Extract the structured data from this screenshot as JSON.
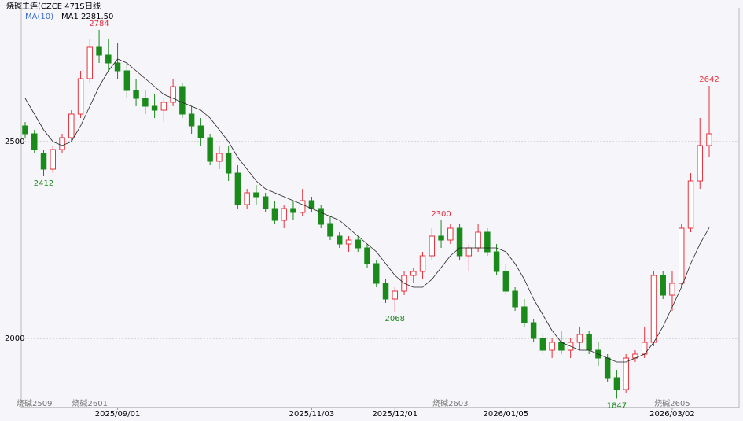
{
  "header": {
    "title": "烧碱主连(CZCE 471S)",
    "period": "日线",
    "ma_selector": "MA(10)",
    "ma_readout": "MA1 2281.50"
  },
  "chart_data": {
    "type": "candlestick",
    "ylim": [
      1824,
      2840
    ],
    "yticks": [
      2000,
      2500
    ],
    "grid": true,
    "up_color": "#e8303c",
    "down_color": "#1a8a1a",
    "ma_color": "#222222",
    "categories": [
      null,
      null,
      null,
      null,
      null,
      null,
      null,
      null,
      null,
      null,
      "2025/09/01",
      null,
      null,
      null,
      null,
      null,
      null,
      null,
      null,
      null,
      null,
      null,
      null,
      null,
      null,
      null,
      null,
      null,
      null,
      null,
      null,
      "2025/11/03",
      null,
      null,
      null,
      null,
      null,
      null,
      null,
      null,
      "2025/12/01",
      null,
      null,
      null,
      null,
      null,
      null,
      null,
      null,
      null,
      null,
      null,
      "2026/01/05",
      null,
      null,
      null,
      null,
      null,
      null,
      null,
      null,
      null,
      null,
      null,
      null,
      null,
      null,
      null,
      null,
      null,
      "2026/03/02",
      null,
      null,
      null,
      null
    ],
    "contracts": [
      null,
      "烧碱2509",
      null,
      null,
      null,
      null,
      null,
      "烧碱2601",
      null,
      null,
      null,
      null,
      null,
      null,
      null,
      null,
      null,
      null,
      null,
      null,
      null,
      null,
      null,
      null,
      null,
      null,
      null,
      null,
      null,
      null,
      null,
      null,
      null,
      null,
      null,
      null,
      null,
      null,
      null,
      null,
      null,
      null,
      null,
      null,
      null,
      null,
      "烧碱2603",
      null,
      null,
      null,
      null,
      null,
      null,
      null,
      null,
      null,
      null,
      null,
      null,
      null,
      null,
      null,
      null,
      null,
      null,
      null,
      null,
      null,
      null,
      null,
      "烧碱2605",
      null,
      null,
      null,
      null
    ],
    "open": [
      2540,
      2520,
      2470,
      2430,
      2480,
      2510,
      2570,
      2660,
      2740,
      2720,
      2700,
      2680,
      2630,
      2610,
      2590,
      2580,
      2600,
      2640,
      2570,
      2540,
      2510,
      2450,
      2470,
      2420,
      2340,
      2370,
      2360,
      2330,
      2300,
      2330,
      2320,
      2350,
      2330,
      2290,
      2260,
      2240,
      2250,
      2230,
      2190,
      2140,
      2100,
      2120,
      2160,
      2170,
      2210,
      2260,
      2250,
      2280,
      2210,
      2230,
      2270,
      2220,
      2170,
      2120,
      2080,
      2040,
      2000,
      1970,
      1990,
      1970,
      1990,
      2010,
      1970,
      1950,
      1900,
      1870,
      1950,
      1960,
      1990,
      2160,
      2110,
      2140,
      2280,
      2400,
      2490
    ],
    "high": [
      2550,
      2530,
      2480,
      2490,
      2520,
      2580,
      2680,
      2760,
      2784,
      2760,
      2750,
      2700,
      2660,
      2630,
      2620,
      2610,
      2660,
      2650,
      2590,
      2560,
      2520,
      2490,
      2490,
      2440,
      2380,
      2390,
      2370,
      2350,
      2340,
      2350,
      2380,
      2360,
      2340,
      2310,
      2270,
      2260,
      2260,
      2240,
      2200,
      2150,
      2130,
      2170,
      2180,
      2220,
      2280,
      2300,
      2290,
      2290,
      2240,
      2290,
      2280,
      2240,
      2190,
      2130,
      2100,
      2050,
      2010,
      2000,
      2020,
      2000,
      2030,
      2020,
      1990,
      1960,
      1920,
      1960,
      1970,
      2030,
      2170,
      2170,
      2170,
      2290,
      2420,
      2560,
      2642
    ],
    "low": [
      2510,
      2470,
      2412,
      2420,
      2470,
      2500,
      2560,
      2650,
      2700,
      2680,
      2660,
      2610,
      2590,
      2570,
      2560,
      2550,
      2590,
      2560,
      2520,
      2490,
      2440,
      2430,
      2400,
      2330,
      2330,
      2340,
      2320,
      2290,
      2280,
      2300,
      2310,
      2320,
      2280,
      2250,
      2230,
      2220,
      2220,
      2180,
      2130,
      2090,
      2068,
      2110,
      2140,
      2150,
      2200,
      2230,
      2240,
      2200,
      2170,
      2220,
      2210,
      2160,
      2110,
      2070,
      2030,
      1990,
      1960,
      1950,
      1960,
      1950,
      1970,
      1960,
      1930,
      1890,
      1847,
      1860,
      1940,
      1950,
      1980,
      2100,
      2070,
      2130,
      2270,
      2380,
      2460
    ],
    "close": [
      2520,
      2480,
      2430,
      2480,
      2510,
      2570,
      2660,
      2740,
      2720,
      2700,
      2680,
      2630,
      2610,
      2590,
      2580,
      2600,
      2640,
      2570,
      2540,
      2510,
      2450,
      2470,
      2420,
      2340,
      2370,
      2360,
      2330,
      2300,
      2330,
      2320,
      2350,
      2330,
      2290,
      2260,
      2240,
      2250,
      2230,
      2190,
      2140,
      2100,
      2120,
      2160,
      2170,
      2210,
      2260,
      2250,
      2280,
      2210,
      2230,
      2270,
      2220,
      2170,
      2120,
      2080,
      2040,
      2000,
      1970,
      1990,
      1970,
      1990,
      2010,
      1970,
      1950,
      1900,
      1870,
      1950,
      1960,
      1990,
      2160,
      2110,
      2140,
      2280,
      2400,
      2490,
      2520
    ],
    "ma": [
      2610,
      2570,
      2530,
      2500,
      2490,
      2500,
      2540,
      2590,
      2640,
      2680,
      2710,
      2700,
      2680,
      2660,
      2640,
      2620,
      2610,
      2600,
      2590,
      2580,
      2560,
      2530,
      2500,
      2460,
      2430,
      2400,
      2380,
      2370,
      2360,
      2350,
      2340,
      2330,
      2320,
      2310,
      2300,
      2280,
      2260,
      2240,
      2220,
      2190,
      2160,
      2140,
      2130,
      2130,
      2150,
      2180,
      2210,
      2230,
      2230,
      2230,
      2230,
      2230,
      2220,
      2190,
      2150,
      2100,
      2060,
      2020,
      1990,
      1980,
      1970,
      1970,
      1960,
      1950,
      1940,
      1940,
      1950,
      1960,
      1990,
      2030,
      2080,
      2130,
      2190,
      2240,
      2281.5
    ],
    "high_labels": [
      2784,
      2300,
      2642
    ],
    "low_labels": [
      2412,
      2068,
      1847
    ]
  }
}
